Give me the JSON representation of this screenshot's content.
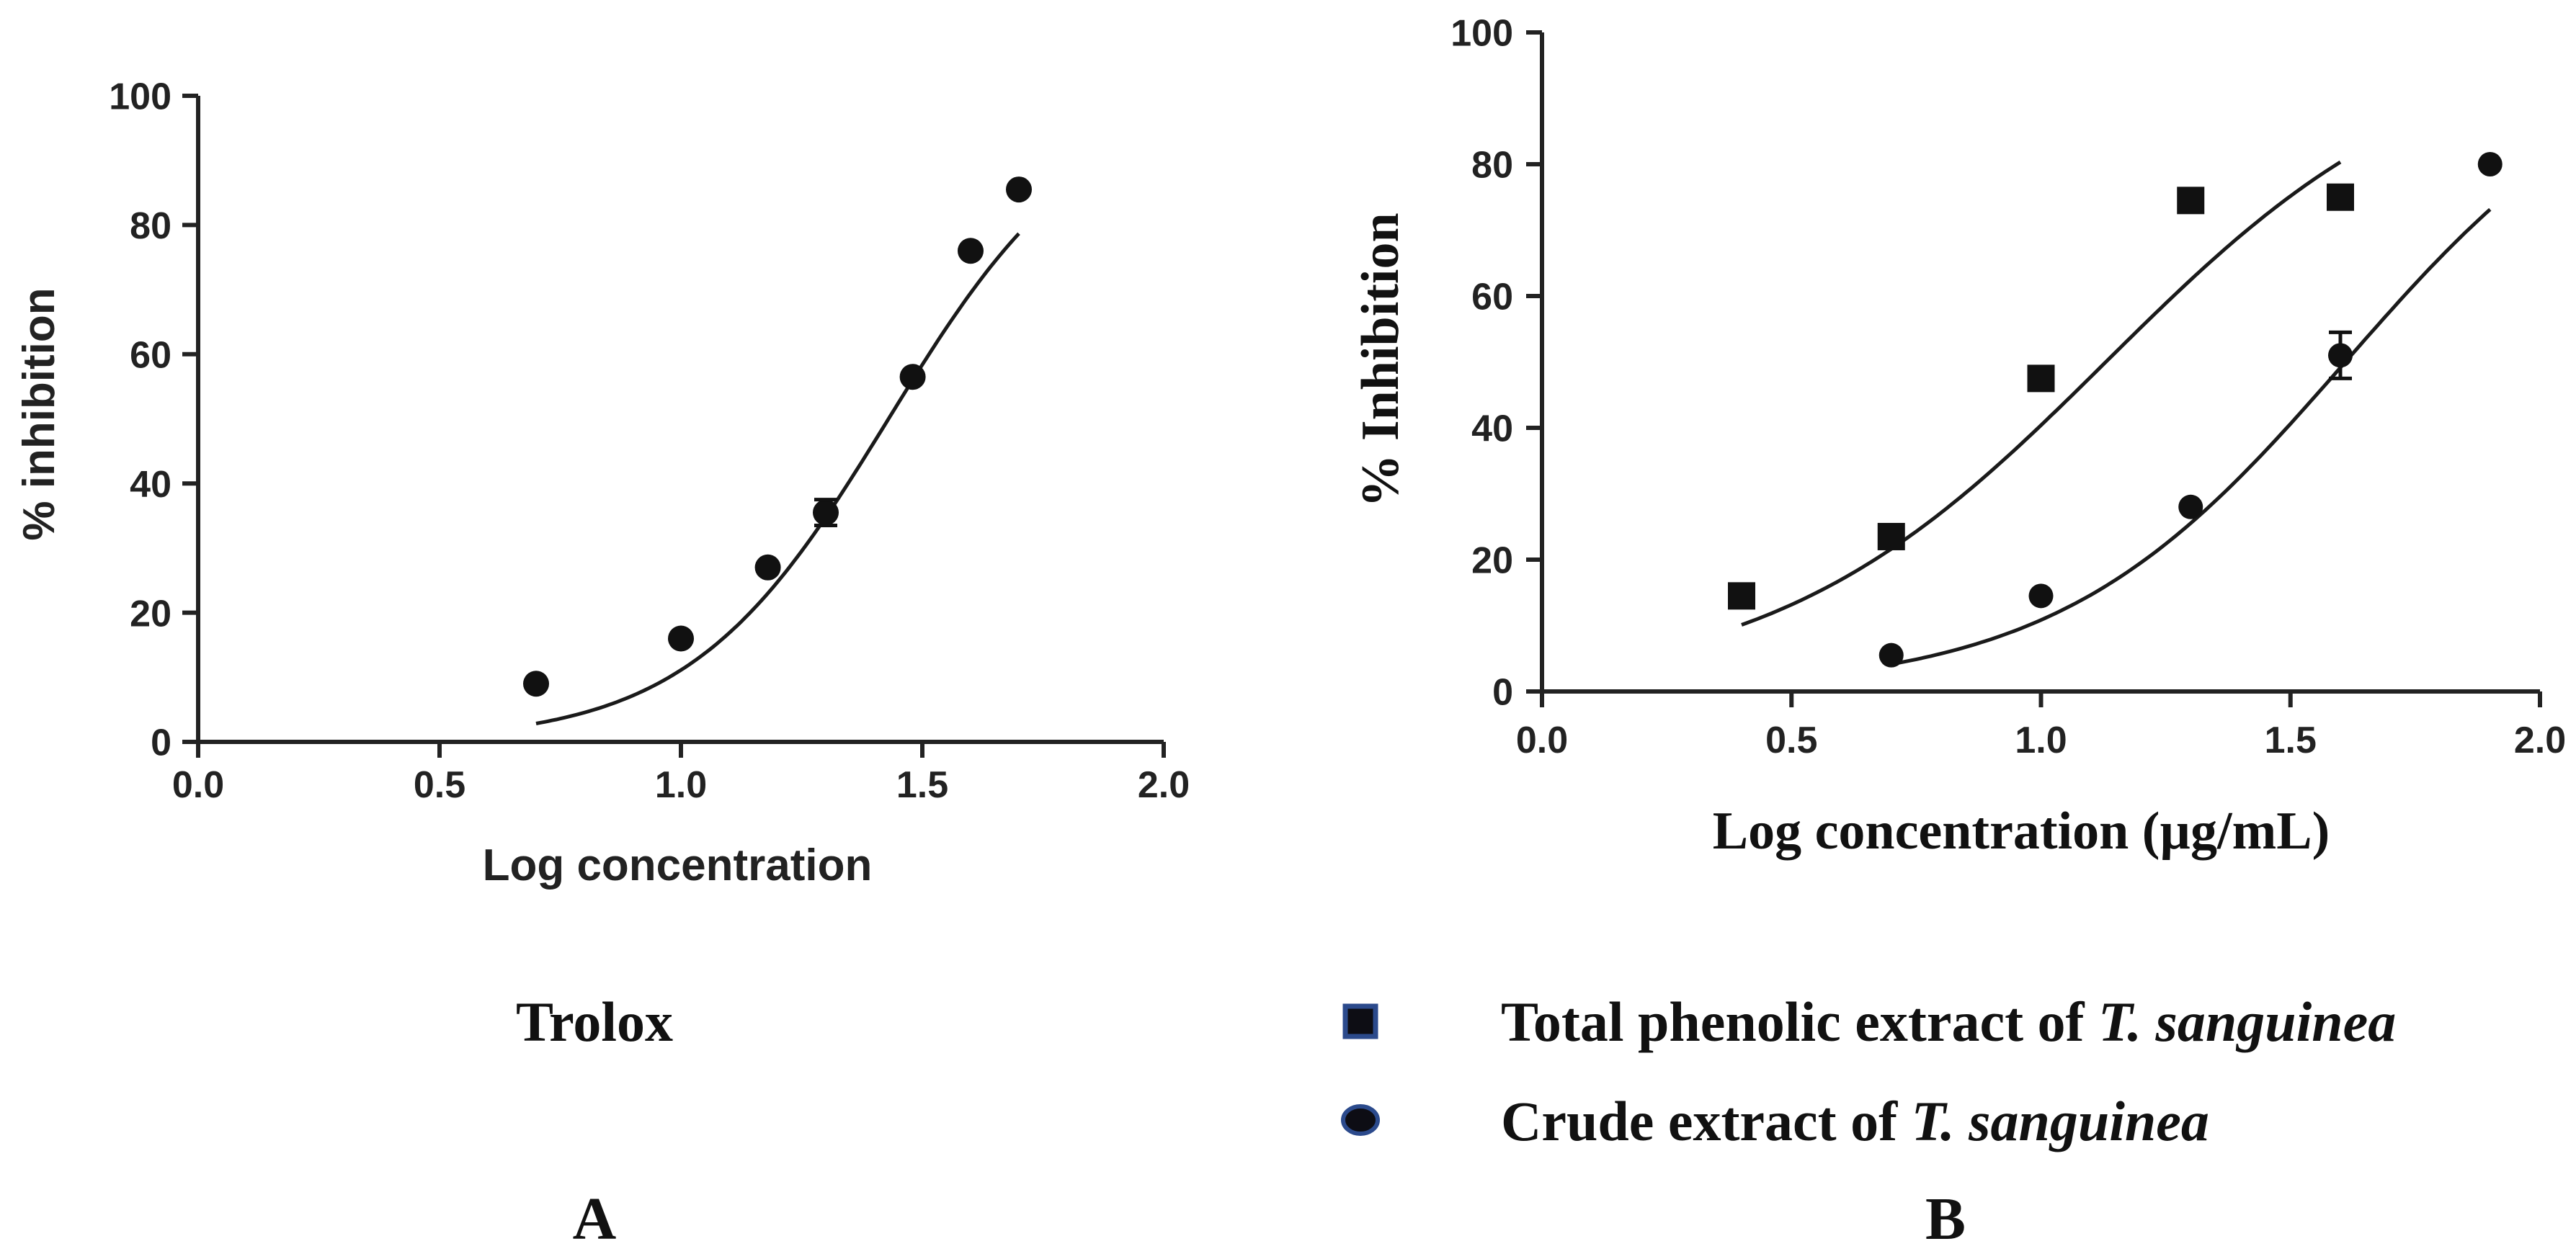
{
  "chart_data": [
    {
      "type": "scatter",
      "panel": "A",
      "caption": "Trolox",
      "xlabel": "Log concentration",
      "ylabel": "% inhibition",
      "xlim": [
        0.0,
        2.0
      ],
      "ylim": [
        0,
        100
      ],
      "xticks": [
        "0.0",
        "0.5",
        "1.0",
        "1.5",
        "2.0"
      ],
      "yticks": [
        "0",
        "20",
        "40",
        "60",
        "80",
        "100"
      ],
      "series": [
        {
          "name": "Trolox",
          "marker": "circle",
          "x": [
            0.7,
            1.0,
            1.18,
            1.3,
            1.48,
            1.6,
            1.7
          ],
          "y": [
            9,
            16,
            27,
            35.5,
            56.5,
            76,
            85.5
          ],
          "fit": {
            "bottom": 0,
            "top": 100,
            "logEC50": 1.43,
            "hill": 2.1,
            "xmin": 0.7,
            "xmax": 1.7
          }
        }
      ]
    },
    {
      "type": "scatter",
      "panel": "B",
      "xlabel": "Log concentration (µg/mL)",
      "ylabel": "% Inhibition",
      "xlim": [
        0.0,
        2.0
      ],
      "ylim": [
        0,
        100
      ],
      "xticks": [
        "0.0",
        "0.5",
        "1.0",
        "1.5",
        "2.0"
      ],
      "yticks": [
        "0",
        "20",
        "40",
        "60",
        "80",
        "100"
      ],
      "legend": "bottom",
      "series": [
        {
          "name": "Total phenolic extract of T. sanguinea",
          "marker": "square",
          "x": [
            0.4,
            0.7,
            1.0,
            1.3,
            1.6
          ],
          "y": [
            14.5,
            23.5,
            47.5,
            74.5,
            75
          ],
          "fit": {
            "bottom": 0,
            "top": 100,
            "logEC50": 1.13,
            "hill": 1.3,
            "xmin": 0.4,
            "xmax": 1.6
          }
        },
        {
          "name": "Crude extract of T. sanguinea",
          "marker": "circle",
          "x": [
            0.7,
            1.0,
            1.3,
            1.6,
            1.9
          ],
          "y": [
            5.5,
            14.5,
            28,
            51,
            80
          ],
          "fit": {
            "bottom": 0,
            "top": 100,
            "logEC50": 1.61,
            "hill": 1.5,
            "xmin": 0.7,
            "xmax": 1.9
          }
        }
      ]
    }
  ],
  "legend": {
    "phenolic_prefix": "Total phenolic extract of ",
    "crude_prefix": "Crude extract of ",
    "species": "T. sanguinea"
  },
  "panel_labels": {
    "a": "A",
    "b": "B"
  },
  "error_bars": {
    "trolox_point": {
      "x": 1.3,
      "y": 35.5,
      "low": 33.5,
      "high": 37.5
    },
    "crude_point": {
      "x": 1.6,
      "y": 51,
      "low": 47.5,
      "high": 54.5
    }
  }
}
